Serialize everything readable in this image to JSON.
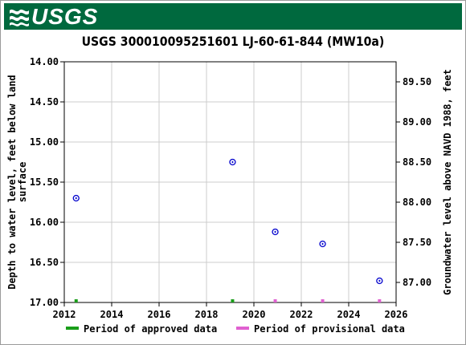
{
  "header": {
    "logo_text": "USGS",
    "logo_icon": "usgs-wave-icon",
    "background": "#00693e"
  },
  "chart_data": {
    "type": "scatter",
    "title": "USGS 300010095251601 LJ-60-61-844 (MW10a)",
    "ylabel_left": "Depth to water level, feet below land surface",
    "ylabel_right": "Groundwater level above NAVD 1988, feet",
    "xlim": [
      2012,
      2026
    ],
    "ylim_left": [
      17.0,
      14.0
    ],
    "ylim_right": [
      86.75,
      89.75
    ],
    "y_inverted": true,
    "grid": true,
    "x_ticks": [
      "2012",
      "2014",
      "2016",
      "2018",
      "2020",
      "2022",
      "2024",
      "2026"
    ],
    "x_tick_values": [
      2012,
      2014,
      2016,
      2018,
      2020,
      2022,
      2024,
      2026
    ],
    "y_ticks_left": [
      "14.00",
      "14.50",
      "15.00",
      "15.50",
      "16.00",
      "16.50",
      "17.00"
    ],
    "y_tick_values_left": [
      14.0,
      14.5,
      15.0,
      15.5,
      16.0,
      16.5,
      17.0
    ],
    "y_ticks_right": [
      "89.50",
      "89.00",
      "88.50",
      "88.00",
      "87.50",
      "87.00"
    ],
    "y_tick_values_right": [
      89.5,
      89.0,
      88.5,
      88.0,
      87.5,
      87.0
    ],
    "series": [
      {
        "marker": "circle-plus",
        "color": "#0000cc",
        "points": [
          {
            "x": 2012.5,
            "y": 15.7
          },
          {
            "x": 2019.1,
            "y": 15.25
          },
          {
            "x": 2020.9,
            "y": 16.12
          },
          {
            "x": 2022.9,
            "y": 16.27
          },
          {
            "x": 2025.3,
            "y": 16.73
          }
        ]
      }
    ],
    "approval_marks": [
      {
        "x": 2012.5,
        "status": "approved"
      },
      {
        "x": 2019.1,
        "status": "approved"
      },
      {
        "x": 2020.9,
        "status": "provisional"
      },
      {
        "x": 2022.9,
        "status": "provisional"
      },
      {
        "x": 2025.3,
        "status": "provisional"
      }
    ],
    "legend": {
      "placement": "bottom",
      "items": [
        {
          "label": "Period of approved data",
          "color": "#1a9e1a"
        },
        {
          "label": "Period of provisional data",
          "color": "#e060d0"
        }
      ]
    }
  }
}
